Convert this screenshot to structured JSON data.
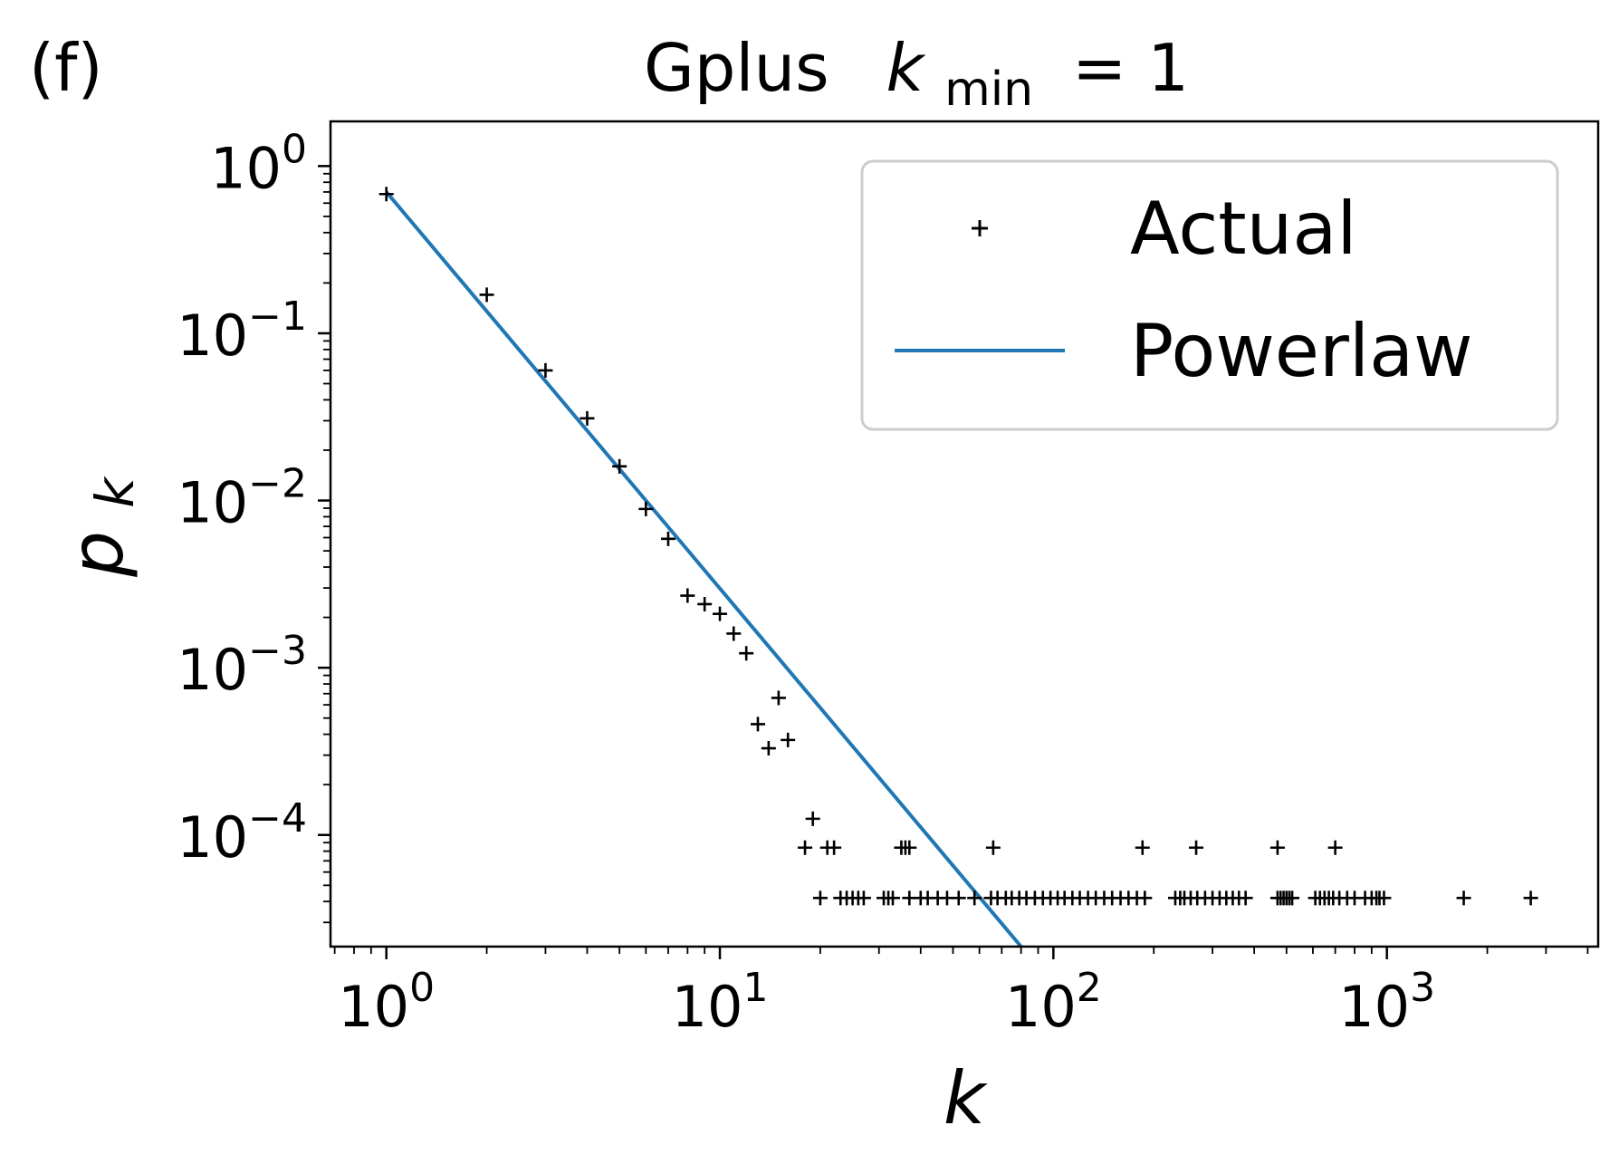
{
  "panel_label": "(f)",
  "chart_data": {
    "type": "scatter",
    "title": {
      "prefix": "Gplus",
      "var": "k",
      "sub": "min",
      "suffix": "= 1"
    },
    "xlabel": "k",
    "ylabel": {
      "base": "p",
      "sub": "k"
    },
    "x_scale": "log",
    "y_scale": "log",
    "xlim": [
      0.68,
      4300
    ],
    "ylim": [
      2.15e-05,
      1.85
    ],
    "x_ticks": [
      {
        "value": 1,
        "label_base": "10",
        "label_exp": "0"
      },
      {
        "value": 10,
        "label_base": "10",
        "label_exp": "1"
      },
      {
        "value": 100,
        "label_base": "10",
        "label_exp": "2"
      },
      {
        "value": 1000,
        "label_base": "10",
        "label_exp": "3"
      }
    ],
    "y_ticks": [
      {
        "value": 1,
        "label_base": "10",
        "label_exp": "0"
      },
      {
        "value": 0.1,
        "label_base": "10",
        "label_exp": "−1"
      },
      {
        "value": 0.01,
        "label_base": "10",
        "label_exp": "−2"
      },
      {
        "value": 0.001,
        "label_base": "10",
        "label_exp": "−3"
      },
      {
        "value": 0.0001,
        "label_base": "10",
        "label_exp": "−4"
      }
    ],
    "grid": false,
    "legend_position": "top-right",
    "series": [
      {
        "name": "Actual",
        "kind": "marker-plus",
        "color": "#000000",
        "x": [
          1,
          2,
          3,
          4,
          5,
          6,
          7,
          8,
          9,
          10,
          11,
          12,
          13,
          14,
          15,
          16,
          19,
          18,
          21,
          22,
          35,
          36,
          37,
          66,
          185,
          268,
          470,
          700,
          20,
          23,
          24,
          25,
          26,
          27,
          31,
          32,
          33,
          37,
          40,
          42,
          45,
          48,
          52,
          58,
          65,
          68,
          72,
          75,
          79,
          83,
          88,
          93,
          98,
          103,
          108,
          114,
          120,
          127,
          134,
          142,
          150,
          159,
          168,
          178,
          188,
          232,
          240,
          247,
          258,
          270,
          285,
          300,
          315,
          330,
          345,
          360,
          377,
          470,
          480,
          490,
          500,
          510,
          520,
          610,
          630,
          650,
          670,
          690,
          720,
          760,
          800,
          860,
          900,
          930,
          950,
          980,
          1700,
          2700
        ],
        "y": [
          0.68,
          0.17,
          0.06,
          0.031,
          0.016,
          0.0089,
          0.0059,
          0.0027,
          0.0024,
          0.0021,
          0.0016,
          0.00122,
          0.00046,
          0.00033,
          0.00066,
          0.00037,
          0.000125,
          8.4e-05,
          8.4e-05,
          8.4e-05,
          8.4e-05,
          8.4e-05,
          8.4e-05,
          8.4e-05,
          8.4e-05,
          8.4e-05,
          8.4e-05,
          8.4e-05,
          4.2e-05,
          4.2e-05,
          4.2e-05,
          4.2e-05,
          4.2e-05,
          4.2e-05,
          4.2e-05,
          4.2e-05,
          4.2e-05,
          4.2e-05,
          4.2e-05,
          4.2e-05,
          4.2e-05,
          4.2e-05,
          4.2e-05,
          4.2e-05,
          4.2e-05,
          4.2e-05,
          4.2e-05,
          4.2e-05,
          4.2e-05,
          4.2e-05,
          4.2e-05,
          4.2e-05,
          4.2e-05,
          4.2e-05,
          4.2e-05,
          4.2e-05,
          4.2e-05,
          4.2e-05,
          4.2e-05,
          4.2e-05,
          4.2e-05,
          4.2e-05,
          4.2e-05,
          4.2e-05,
          4.2e-05,
          4.2e-05,
          4.2e-05,
          4.2e-05,
          4.2e-05,
          4.2e-05,
          4.2e-05,
          4.2e-05,
          4.2e-05,
          4.2e-05,
          4.2e-05,
          4.2e-05,
          4.2e-05,
          4.2e-05,
          4.2e-05,
          4.2e-05,
          4.2e-05,
          4.2e-05,
          4.2e-05,
          4.2e-05,
          4.2e-05,
          4.2e-05,
          4.2e-05,
          4.2e-05,
          4.2e-05,
          4.2e-05,
          4.2e-05,
          4.2e-05,
          4.2e-05,
          4.2e-05,
          4.2e-05,
          4.2e-05,
          4.2e-05,
          4.2e-05
        ]
      },
      {
        "name": "Powerlaw",
        "kind": "line",
        "color": "#1f77b4",
        "x": [
          1,
          80
        ],
        "y": [
          0.7,
          2.15e-05
        ]
      }
    ]
  }
}
